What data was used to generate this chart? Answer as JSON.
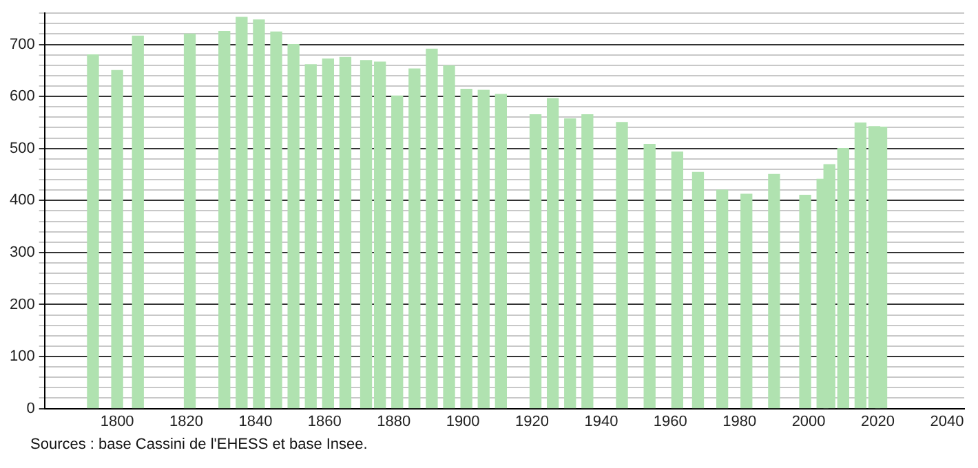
{
  "chart_data": {
    "type": "bar",
    "color": "#b0e2b0",
    "x": [
      1793,
      1800,
      1806,
      1821,
      1831,
      1836,
      1841,
      1846,
      1851,
      1856,
      1861,
      1866,
      1872,
      1876,
      1881,
      1886,
      1891,
      1896,
      1901,
      1906,
      1911,
      1921,
      1926,
      1931,
      1936,
      1946,
      1954,
      1962,
      1968,
      1975,
      1982,
      1990,
      1999,
      2004,
      2006,
      2010,
      2015,
      2019,
      2021
    ],
    "values": [
      680,
      650,
      716,
      720,
      725,
      752,
      747,
      724,
      700,
      661,
      672,
      675,
      669,
      666,
      601,
      653,
      691,
      659,
      614,
      612,
      604,
      565,
      596,
      557,
      565,
      550,
      508,
      493,
      454,
      420,
      412,
      450,
      410,
      441,
      469,
      500,
      549,
      542,
      541
    ],
    "xlim": [
      1779,
      2045
    ],
    "xticks": [
      1800,
      1820,
      1840,
      1860,
      1880,
      1900,
      1920,
      1940,
      1960,
      1980,
      2000,
      2020,
      2040
    ],
    "ylim": [
      0,
      760
    ],
    "yticks": [
      0,
      {
        "value": 20,
        "label": null
      },
      {
        "value": 40,
        "label": null
      },
      {
        "value": 60,
        "label": null
      },
      {
        "value": 80,
        "label": null
      },
      100,
      {
        "value": 120,
        "label": null
      },
      {
        "value": 140,
        "label": null
      },
      {
        "value": 160,
        "label": null
      },
      {
        "value": 180,
        "label": null
      },
      200,
      {
        "value": 220,
        "label": null
      },
      {
        "value": 240,
        "label": null
      },
      {
        "value": 260,
        "label": null
      },
      {
        "value": 280,
        "label": null
      },
      300,
      {
        "value": 320,
        "label": null
      },
      {
        "value": 340,
        "label": null
      },
      {
        "value": 360,
        "label": null
      },
      {
        "value": 380,
        "label": null
      },
      400,
      {
        "value": 420,
        "label": null
      },
      {
        "value": 440,
        "label": null
      },
      {
        "value": 460,
        "label": null
      },
      {
        "value": 480,
        "label": null
      },
      500,
      {
        "value": 520,
        "label": null
      },
      {
        "value": 540,
        "label": null
      },
      {
        "value": 560,
        "label": null
      },
      {
        "value": 580,
        "label": null
      },
      600,
      {
        "value": 620,
        "label": null
      },
      {
        "value": 640,
        "label": null
      },
      {
        "value": 660,
        "label": null
      },
      {
        "value": 680,
        "label": null
      },
      700,
      {
        "value": 720,
        "label": null
      },
      {
        "value": 740,
        "label": null
      },
      {
        "value": 760,
        "label": null
      }
    ],
    "grid": "y",
    "legend": false,
    "annotations": [
      "Sources : base Cassini de l'EHESS et base Insee."
    ]
  }
}
